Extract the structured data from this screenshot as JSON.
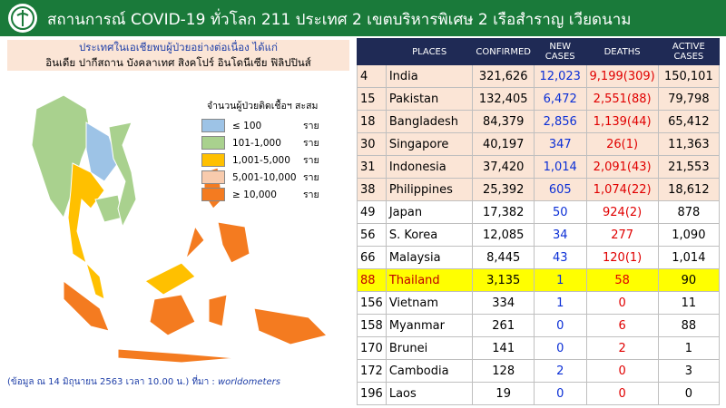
{
  "header": {
    "title": "สถานการณ์ COVID-19 ทั่วโลก 211 ประเทศ 2 เขตบริหารพิเศษ 2 เรือสำราญ เวียดนาม"
  },
  "info_box": {
    "lines": [
      "ประเทศในเอเชียพบผู้ป่วยอย่างต่อเนื่อง  ได้แก่",
      "อินเดีย ปากีสถาน บังคลาเทศ สิงคโปร์ อินโดนีเซีย ฟิลิปปินส์"
    ]
  },
  "legend": {
    "title": "จำนวนผู้ป่วยติดเชื้อฯ สะสม",
    "items": [
      {
        "label": "≤ 100",
        "unit": "ราย",
        "color": "#9dc3e6"
      },
      {
        "label": "101-1,000",
        "unit": "ราย",
        "color": "#a9d18e"
      },
      {
        "label": "1,001-5,000",
        "unit": "ราย",
        "color": "#ffc000"
      },
      {
        "label": "5,001-10,000",
        "unit": "ราย",
        "color": "#f8cbad"
      },
      {
        "label": "≥ 10,000",
        "unit": "ราย",
        "color": "#f47b20"
      }
    ]
  },
  "source_note": {
    "text": "(ข้อมูล ณ 14 มิถุนายน 2563 เวลา 10.00 น.) ที่มา :",
    "source": "worldometers"
  },
  "table": {
    "columns": [
      "PLACES",
      "CONFIRMED",
      "NEW CASES",
      "DEATHS",
      "ACTIVE CASES"
    ],
    "rows": [
      [
        "4",
        "India",
        "321,626",
        "12,023",
        "9,199(309)",
        "150,101"
      ],
      [
        "15",
        "Pakistan",
        "132,405",
        "6,472",
        "2,551(88)",
        "79,798"
      ],
      [
        "18",
        "Bangladesh",
        "84,379",
        "2,856",
        "1,139(44)",
        "65,412"
      ],
      [
        "30",
        "Singapore",
        "40,197",
        "347",
        "26(1)",
        "11,363"
      ],
      [
        "31",
        "Indonesia",
        "37,420",
        "1,014",
        "2,091(43)",
        "21,553"
      ],
      [
        "38",
        "Philippines",
        "25,392",
        "605",
        "1,074(22)",
        "18,612"
      ],
      [
        "49",
        "Japan",
        "17,382",
        "50",
        "924(2)",
        "878"
      ],
      [
        "56",
        "S. Korea",
        "12,085",
        "34",
        "277",
        "1,090"
      ],
      [
        "66",
        "Malaysia",
        "8,445",
        "43",
        "120(1)",
        "1,014"
      ],
      [
        "88",
        "Thailand",
        "3,135",
        "1",
        "58",
        "90"
      ],
      [
        "156",
        "Vietnam",
        "334",
        "1",
        "0",
        "11"
      ],
      [
        "158",
        "Myanmar",
        "261",
        "0",
        "6",
        "88"
      ],
      [
        "170",
        "Brunei",
        "141",
        "0",
        "2",
        "1"
      ],
      [
        "172",
        "Cambodia",
        "128",
        "2",
        "0",
        "3"
      ],
      [
        "196",
        "Laos",
        "19",
        "0",
        "0",
        "0"
      ]
    ]
  }
}
